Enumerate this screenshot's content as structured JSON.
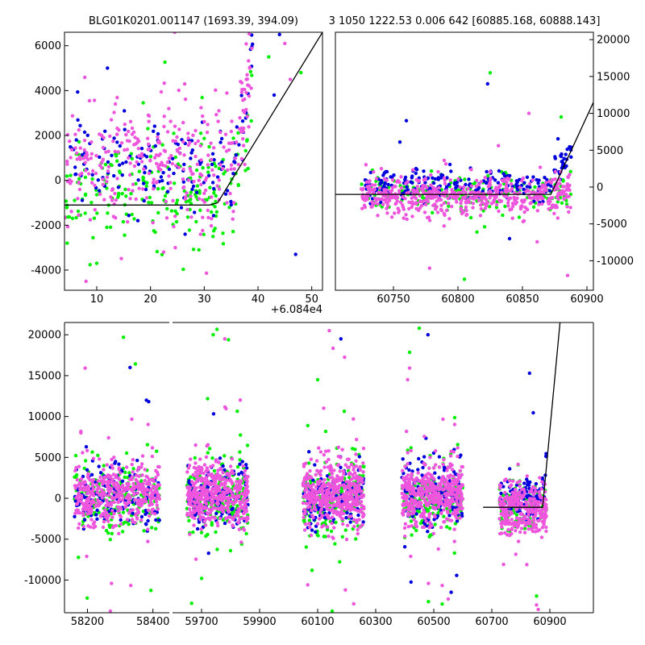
{
  "title_left": "BLG01K0201.001147 (1693.39, 394.09)",
  "title_right": "3 1050 1222.53 0.006 642 [60885.168, 60888.143]",
  "colors": {
    "green": "#00ee00",
    "blue": "#0000dd",
    "pink": "#ee55dd",
    "model": "#000000",
    "axes": "#000000"
  },
  "chart_data": [
    {
      "id": "zoom-left",
      "type": "scatter",
      "offset_label": "+6.084e4",
      "xlim": [
        4,
        52
      ],
      "ylim": [
        -4900,
        6600
      ],
      "xticks": [
        10,
        20,
        30,
        40,
        50
      ],
      "yticks": [
        -4000,
        -2000,
        0,
        2000,
        4000,
        6000
      ],
      "ytick_side": "left",
      "model_line": {
        "x": [
          4,
          31,
          32.5,
          52
        ],
        "y": [
          -1100,
          -1100,
          -1000,
          6600
        ]
      },
      "series": [
        {
          "name": "green",
          "segments": [
            [
              4,
              39,
              7,
              -500,
              1100,
              210
            ]
          ]
        },
        {
          "name": "blue",
          "segments": [
            [
              5,
              39,
              8,
              600,
              900,
              150
            ]
          ]
        },
        {
          "name": "pink",
          "segments": [
            [
              4,
              39,
              7,
              700,
              1300,
              340
            ]
          ]
        }
      ],
      "outliers": [
        {
          "x": 10,
          "y": -3700
        },
        {
          "x": 12,
          "y": 5000
        },
        {
          "x": 24.5,
          "y": 6600
        },
        {
          "x": 42,
          "y": 5500
        },
        {
          "x": 44,
          "y": 6500
        },
        {
          "x": 46,
          "y": 4500
        },
        {
          "x": 48,
          "y": 4800
        },
        {
          "x": 47,
          "y": -3300
        },
        {
          "x": 8,
          "y": -4500
        },
        {
          "x": 29,
          "y": -3100
        },
        {
          "x": 43,
          "y": 3800
        },
        {
          "x": 45,
          "y": 6100
        }
      ]
    },
    {
      "id": "zoom-right",
      "type": "scatter",
      "xlim": [
        60705,
        60905
      ],
      "ylim": [
        -14000,
        21000
      ],
      "xticks": [
        60750,
        60800,
        60850,
        60900
      ],
      "yticks": [
        -10000,
        -5000,
        0,
        5000,
        10000,
        15000,
        20000
      ],
      "ytick_side": "right",
      "model_line": {
        "x": [
          60705,
          60872,
          60880,
          60905
        ],
        "y": [
          -1000,
          -1000,
          2000,
          11500
        ]
      },
      "series": [
        {
          "name": "green",
          "segments": [
            [
              60725,
              60888,
              0,
              -1000,
              1300,
              200
            ]
          ]
        },
        {
          "name": "blue",
          "segments": [
            [
              60728,
              60888,
              0.01,
              300,
              1100,
              230
            ]
          ]
        },
        {
          "name": "pink",
          "segments": [
            [
              60725,
              60888,
              0,
              -1200,
              1300,
              560
            ]
          ]
        }
      ],
      "outliers": [
        {
          "x": 60825,
          "y": 15500
        },
        {
          "x": 60823,
          "y": 14000
        },
        {
          "x": 60778,
          "y": -11000
        },
        {
          "x": 60805,
          "y": -12500
        },
        {
          "x": 60760,
          "y": 9000
        },
        {
          "x": 60855,
          "y": 10000
        },
        {
          "x": 60880,
          "y": 9500
        },
        {
          "x": 60840,
          "y": -7000
        },
        {
          "x": 60885,
          "y": -12000
        }
      ]
    },
    {
      "id": "full-lightcurve",
      "type": "scatter",
      "ylim": [
        -14000,
        21500
      ],
      "yticks": [
        -10000,
        -5000,
        0,
        5000,
        10000,
        15000,
        20000
      ],
      "ytick_side": "left",
      "panels": [
        {
          "xlim": [
            58130,
            58450
          ],
          "xticks": [
            58200,
            58400
          ]
        },
        {
          "xlim": [
            59600,
            61050
          ],
          "xticks": [
            59700,
            59900,
            60100,
            60300,
            60500,
            60700,
            60900
          ]
        }
      ],
      "model_line": {
        "x": [
          60670,
          60875,
          60935
        ],
        "y": [
          -1100,
          -1100,
          21500
        ]
      },
      "series": [
        {
          "name": "green",
          "segments": [
            [
              58160,
              58420,
              0,
              0,
              2200,
              190
            ],
            [
              59650,
              59860,
              0,
              0,
              2200,
              190
            ],
            [
              60050,
              60260,
              0,
              0,
              2200,
              210
            ],
            [
              60390,
              60600,
              0,
              0,
              2200,
              210
            ],
            [
              60725,
              60888,
              0,
              -1000,
              1400,
              130
            ]
          ]
        },
        {
          "name": "blue",
          "segments": [
            [
              58160,
              58420,
              0,
              300,
              1900,
              140
            ],
            [
              59650,
              59860,
              0,
              300,
              1900,
              140
            ],
            [
              60050,
              60260,
              0,
              300,
              1900,
              150
            ],
            [
              60390,
              60600,
              0,
              300,
              1900,
              150
            ],
            [
              60728,
              60888,
              0.012,
              0,
              1400,
              120
            ]
          ]
        },
        {
          "name": "pink",
          "segments": [
            [
              58160,
              58420,
              0,
              500,
              1900,
              430
            ],
            [
              59650,
              59860,
              0,
              500,
              1900,
              430
            ],
            [
              60050,
              60260,
              0,
              500,
              1900,
              450
            ],
            [
              60390,
              60600,
              0,
              500,
              1900,
              450
            ],
            [
              60725,
              60888,
              0,
              -1300,
              1500,
              300
            ]
          ]
        }
      ],
      "outliers": [
        {
          "x": 58310,
          "y": 19700
        },
        {
          "x": 58330,
          "y": 16000
        },
        {
          "x": 59780,
          "y": 19500
        },
        {
          "x": 59740,
          "y": 20000
        },
        {
          "x": 60180,
          "y": 19500
        },
        {
          "x": 60140,
          "y": 20500
        },
        {
          "x": 60450,
          "y": 20800
        },
        {
          "x": 60480,
          "y": 20000
        },
        {
          "x": 60410,
          "y": 14500
        },
        {
          "x": 60100,
          "y": 14500
        },
        {
          "x": 58380,
          "y": 12000
        },
        {
          "x": 58270,
          "y": -13800
        },
        {
          "x": 60150,
          "y": -13800
        },
        {
          "x": 60830,
          "y": 15300
        },
        {
          "x": 60860,
          "y": -13600
        },
        {
          "x": 59700,
          "y": -9800
        },
        {
          "x": 60560,
          "y": -11500
        },
        {
          "x": 58180,
          "y": 8000
        }
      ]
    }
  ]
}
